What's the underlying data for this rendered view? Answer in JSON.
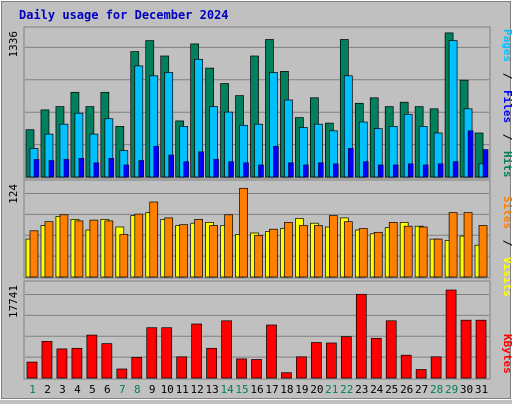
{
  "title": "Daily usage for December 2024",
  "colors": {
    "background": "#c0c0c0",
    "title": "#0000c0",
    "hits": "#00805c",
    "files": "#00c0ff",
    "pages": "#0000ff",
    "visits": "#ffff00",
    "sites": "#ff8000",
    "kbytes": "#ff0000",
    "weekend_label": "#00805c",
    "weekday_label": "#000000",
    "gridline": "#808080"
  },
  "legend": {
    "top": {
      "pages": "Pages",
      "sep1": "/",
      "files": "Files",
      "sep2": "/",
      "hits": "Hits"
    },
    "middle": {
      "sites": "Sites",
      "sep1": "/",
      "visits": "Visits"
    },
    "bottom": {
      "kbytes": "KBytes"
    }
  },
  "chart_data": [
    {
      "type": "bar",
      "panel": "hits-files-pages",
      "categories": [
        "1",
        "2",
        "3",
        "4",
        "5",
        "6",
        "7",
        "8",
        "9",
        "10",
        "11",
        "12",
        "13",
        "14",
        "15",
        "16",
        "17",
        "18",
        "19",
        "20",
        "21",
        "22",
        "23",
        "24",
        "25",
        "26",
        "27",
        "28",
        "29",
        "30",
        "31"
      ],
      "weekend_days": [
        "1",
        "7",
        "8",
        "14",
        "15",
        "21",
        "22",
        "28",
        "29"
      ],
      "ylim": [
        0,
        1336
      ],
      "y_tick_label": "1336",
      "series": [
        {
          "name": "Hits",
          "values": [
            430,
            610,
            640,
            770,
            640,
            770,
            460,
            1140,
            1240,
            1100,
            510,
            1210,
            990,
            850,
            740,
            1100,
            1250,
            960,
            540,
            720,
            490,
            1250,
            670,
            720,
            640,
            680,
            640,
            620,
            1310,
            880,
            400
          ]
        },
        {
          "name": "Files",
          "values": [
            260,
            390,
            480,
            580,
            390,
            530,
            240,
            1010,
            920,
            950,
            460,
            1070,
            640,
            590,
            470,
            480,
            950,
            700,
            450,
            480,
            420,
            920,
            500,
            440,
            460,
            570,
            460,
            400,
            1240,
            620,
            120
          ]
        },
        {
          "name": "Pages",
          "values": [
            160,
            150,
            160,
            170,
            130,
            170,
            110,
            150,
            280,
            200,
            140,
            230,
            160,
            140,
            130,
            110,
            280,
            130,
            110,
            130,
            120,
            260,
            140,
            110,
            110,
            120,
            110,
            120,
            140,
            420,
            250
          ]
        }
      ]
    },
    {
      "type": "bar",
      "panel": "visits-sites",
      "categories": [
        "1",
        "2",
        "3",
        "4",
        "5",
        "6",
        "7",
        "8",
        "9",
        "10",
        "11",
        "12",
        "13",
        "14",
        "15",
        "16",
        "17",
        "18",
        "19",
        "20",
        "21",
        "22",
        "23",
        "24",
        "25",
        "26",
        "27",
        "28",
        "29",
        "30",
        "31"
      ],
      "ylim": [
        0,
        124
      ],
      "y_tick_label": "124",
      "series": [
        {
          "name": "Visits",
          "values": [
            50,
            68,
            80,
            76,
            62,
            76,
            66,
            81,
            85,
            76,
            68,
            71,
            72,
            68,
            56,
            58,
            60,
            64,
            77,
            71,
            66,
            78,
            62,
            57,
            65,
            72,
            67,
            50,
            48,
            54,
            42
          ]
        },
        {
          "name": "Sites",
          "values": [
            61,
            73,
            82,
            74,
            75,
            74,
            56,
            83,
            99,
            78,
            69,
            76,
            68,
            82,
            117,
            55,
            63,
            72,
            68,
            68,
            81,
            73,
            64,
            59,
            72,
            67,
            66,
            50,
            85,
            85,
            68
          ]
        }
      ]
    },
    {
      "type": "bar",
      "panel": "kbytes",
      "categories": [
        "1",
        "2",
        "3",
        "4",
        "5",
        "6",
        "7",
        "8",
        "9",
        "10",
        "11",
        "12",
        "13",
        "14",
        "15",
        "16",
        "17",
        "18",
        "19",
        "20",
        "21",
        "22",
        "23",
        "24",
        "25",
        "26",
        "27",
        "28",
        "29",
        "30",
        "31"
      ],
      "ylim": [
        0,
        17741
      ],
      "y_tick_label": "17741",
      "series": [
        {
          "name": "KBytes",
          "values": [
            3000,
            6900,
            5500,
            5600,
            8100,
            6500,
            1700,
            3900,
            9500,
            9500,
            4000,
            10200,
            5600,
            10800,
            3600,
            3500,
            10000,
            1000,
            4000,
            6700,
            6600,
            7800,
            15800,
            7500,
            10800,
            4300,
            1600,
            4000,
            16600,
            10900,
            10900
          ]
        }
      ]
    }
  ]
}
